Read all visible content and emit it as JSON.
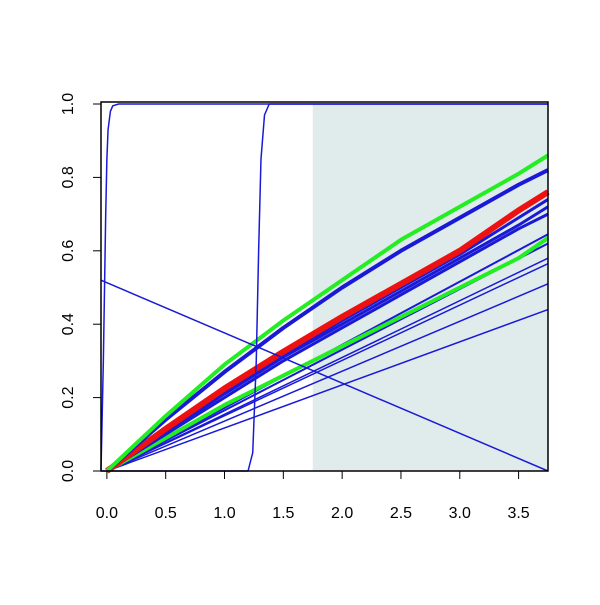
{
  "chart_data": {
    "type": "line",
    "xlim": [
      -0.05,
      3.75
    ],
    "ylim": [
      0,
      1
    ],
    "xticks": [
      {
        "value": 0,
        "label": "0.0"
      },
      {
        "value": 0.5,
        "label": "0.5"
      },
      {
        "value": 1,
        "label": "1.0"
      },
      {
        "value": 1.5,
        "label": "1.5"
      },
      {
        "value": 2,
        "label": "2.0"
      },
      {
        "value": 2.5,
        "label": "2.5"
      },
      {
        "value": 3,
        "label": "3.0"
      },
      {
        "value": 3.5,
        "label": "3.5"
      }
    ],
    "yticks": [
      {
        "value": 0,
        "label": "0.0"
      },
      {
        "value": 0.2,
        "label": "0.2"
      },
      {
        "value": 0.4,
        "label": "0.4"
      },
      {
        "value": 0.6,
        "label": "0.6"
      },
      {
        "value": 0.8,
        "label": "0.8"
      },
      {
        "value": 1,
        "label": "1.0"
      }
    ],
    "shade_xmin": 1.75,
    "shade_color": "#e0ecec",
    "series": [
      {
        "color": "#1a1ad6",
        "width": 1.5,
        "x": [
          0,
          3.75
        ],
        "values": [
          0,
          0.44
        ]
      },
      {
        "color": "#1a1ad6",
        "width": 1.5,
        "x": [
          0,
          3.75
        ],
        "values": [
          0,
          0.51
        ]
      },
      {
        "color": "#1a1ad6",
        "width": 1.5,
        "x": [
          0,
          3.75
        ],
        "values": [
          0,
          0.565
        ]
      },
      {
        "color": "#1a1ad6",
        "width": 1.5,
        "x": [
          0,
          3.75
        ],
        "values": [
          0,
          0.58
        ]
      },
      {
        "color": "#1a1ad6",
        "width": 2,
        "x": [
          0,
          3.75
        ],
        "values": [
          0,
          0.62
        ]
      },
      {
        "color": "#1a1ad6",
        "width": 2,
        "x": [
          0,
          3.75
        ],
        "values": [
          0,
          0.645
        ]
      },
      {
        "color": "#22ee22",
        "width": 4,
        "x": [
          0,
          0.5,
          1,
          1.5,
          2,
          2.5,
          3,
          3.5,
          3.75
        ],
        "values": [
          0,
          0.09,
          0.18,
          0.26,
          0.34,
          0.42,
          0.5,
          0.58,
          0.635
        ]
      },
      {
        "color": "#1a1ad6",
        "width": 3,
        "x": [
          0,
          0.5,
          1,
          1.5,
          2,
          2.5,
          3,
          3.5,
          3.75
        ],
        "values": [
          0,
          0.1,
          0.2,
          0.3,
          0.39,
          0.48,
          0.57,
          0.66,
          0.7
        ]
      },
      {
        "color": "#1a1ad6",
        "width": 3,
        "x": [
          0,
          0.5,
          1,
          1.5,
          2,
          2.5,
          3,
          3.5,
          3.75
        ],
        "values": [
          0,
          0.105,
          0.21,
          0.31,
          0.4,
          0.49,
          0.58,
          0.67,
          0.72
        ]
      },
      {
        "color": "#1a1ad6",
        "width": 3,
        "x": [
          0,
          0.5,
          1,
          1.5,
          2,
          2.5,
          3,
          3.5,
          3.75
        ],
        "values": [
          0,
          0.11,
          0.215,
          0.315,
          0.41,
          0.5,
          0.59,
          0.69,
          0.74
        ]
      },
      {
        "color": "#ee1111",
        "width": 6,
        "x": [
          0,
          0.5,
          1,
          1.5,
          2,
          2.5,
          3,
          3.5,
          3.75
        ],
        "values": [
          0,
          0.115,
          0.225,
          0.325,
          0.42,
          0.51,
          0.6,
          0.71,
          0.76
        ]
      },
      {
        "color": "#1a1ad6",
        "width": 4,
        "x": [
          0,
          0.5,
          1,
          1.5,
          2,
          2.5,
          3,
          3.5,
          3.75
        ],
        "values": [
          0,
          0.14,
          0.27,
          0.39,
          0.5,
          0.6,
          0.69,
          0.78,
          0.82
        ]
      },
      {
        "color": "#22ee22",
        "width": 4,
        "x": [
          0,
          0.5,
          1,
          1.5,
          2,
          2.5,
          3,
          3.5,
          3.75
        ],
        "values": [
          0,
          0.15,
          0.29,
          0.41,
          0.52,
          0.63,
          0.72,
          0.81,
          0.86
        ]
      },
      {
        "color": "#1a1ad6",
        "width": 1.5,
        "x": [
          -0.05,
          3.75
        ],
        "values": [
          0.52,
          0
        ]
      },
      {
        "color": "#1a1ad6",
        "width": 1.5,
        "x": [
          -0.05,
          -0.03,
          -0.01,
          0,
          0.01,
          0.03,
          0.05,
          0.1,
          3.75
        ],
        "values": [
          0,
          0.3,
          0.7,
          0.85,
          0.93,
          0.98,
          0.995,
          1,
          1
        ]
      },
      {
        "color": "#1a1ad6",
        "width": 1.5,
        "x": [
          -0.05,
          1.2,
          1.24,
          1.27,
          1.29,
          1.31,
          1.34,
          1.38,
          3.75
        ],
        "values": [
          0,
          0,
          0.05,
          0.3,
          0.6,
          0.85,
          0.97,
          1,
          1
        ]
      }
    ]
  }
}
